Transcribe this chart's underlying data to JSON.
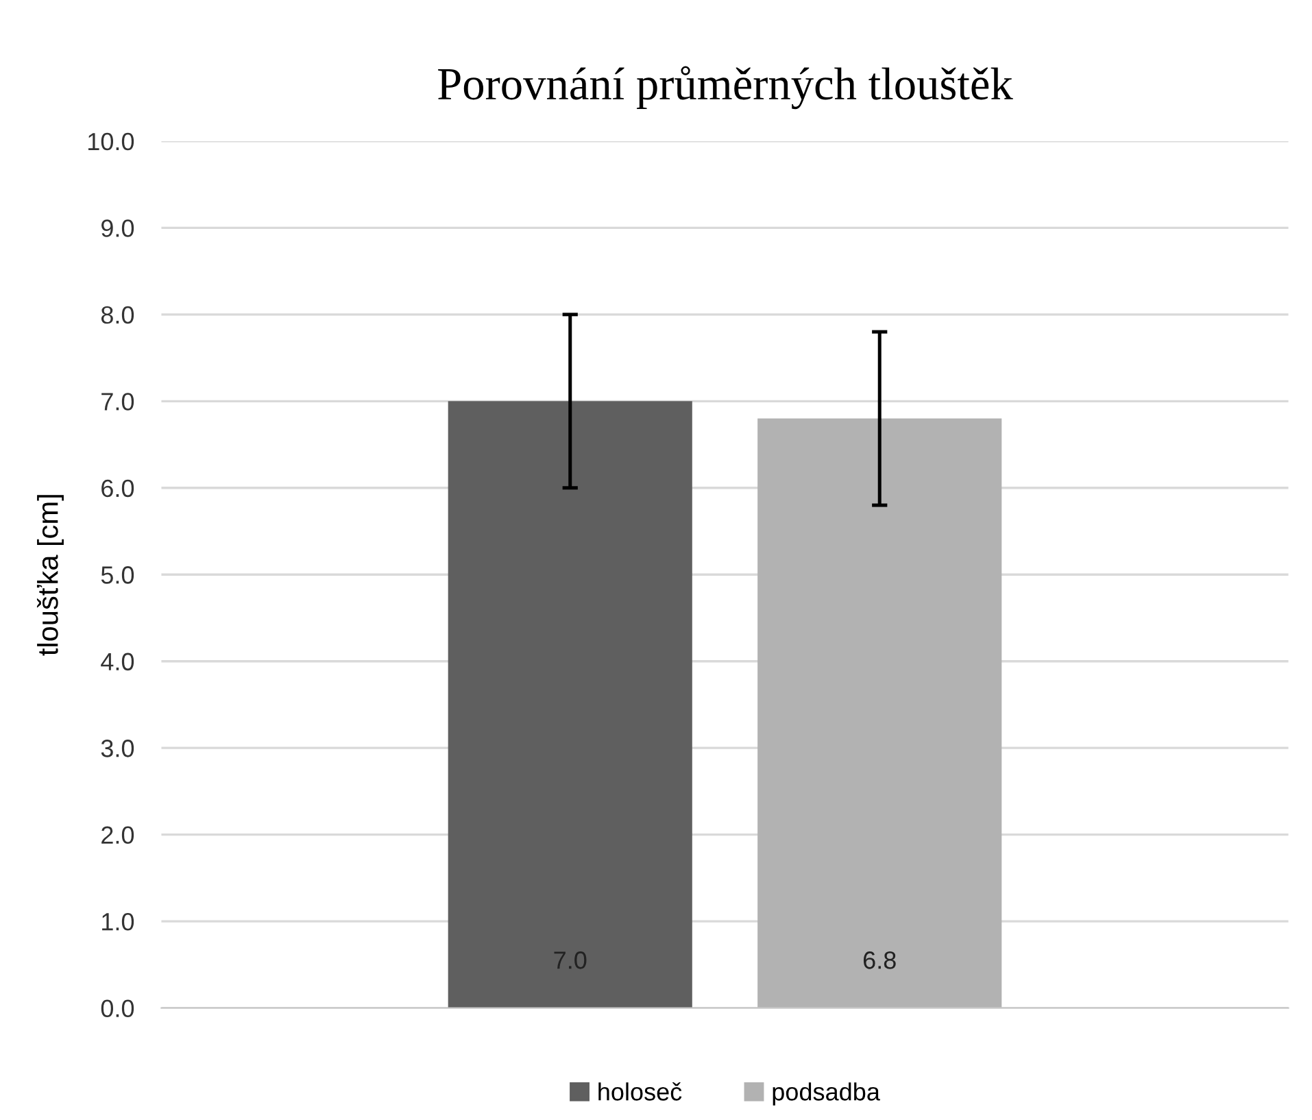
{
  "chart_data": {
    "type": "bar",
    "title": "Porovnání průměrných tlouštěk",
    "ylabel": "tloušťka [cm]",
    "categories": [
      null
    ],
    "series": [
      {
        "name": "holoseč",
        "color": "#5f5f5f",
        "values": [
          7.0
        ],
        "errors": [
          1.0
        ],
        "value_labels": [
          "7.0"
        ]
      },
      {
        "name": "podsadba",
        "color": "#b2b2b2",
        "values": [
          6.8
        ],
        "errors": [
          1.0
        ],
        "value_labels": [
          "6.8"
        ]
      }
    ],
    "ylim": [
      0,
      10
    ],
    "yticks": [
      {
        "value": 0,
        "label": "0.0"
      },
      {
        "value": 1,
        "label": "1.0"
      },
      {
        "value": 2,
        "label": "2.0"
      },
      {
        "value": 3,
        "label": "3.0"
      },
      {
        "value": 4,
        "label": "4.0"
      },
      {
        "value": 5,
        "label": "5.0"
      },
      {
        "value": 6,
        "label": "6.0"
      },
      {
        "value": 7,
        "label": "7.0"
      },
      {
        "value": 8,
        "label": "8.0"
      },
      {
        "value": 9,
        "label": "9.0"
      },
      {
        "value": 10,
        "label": "10.0"
      }
    ],
    "grid": "y",
    "legend": "bottom"
  }
}
